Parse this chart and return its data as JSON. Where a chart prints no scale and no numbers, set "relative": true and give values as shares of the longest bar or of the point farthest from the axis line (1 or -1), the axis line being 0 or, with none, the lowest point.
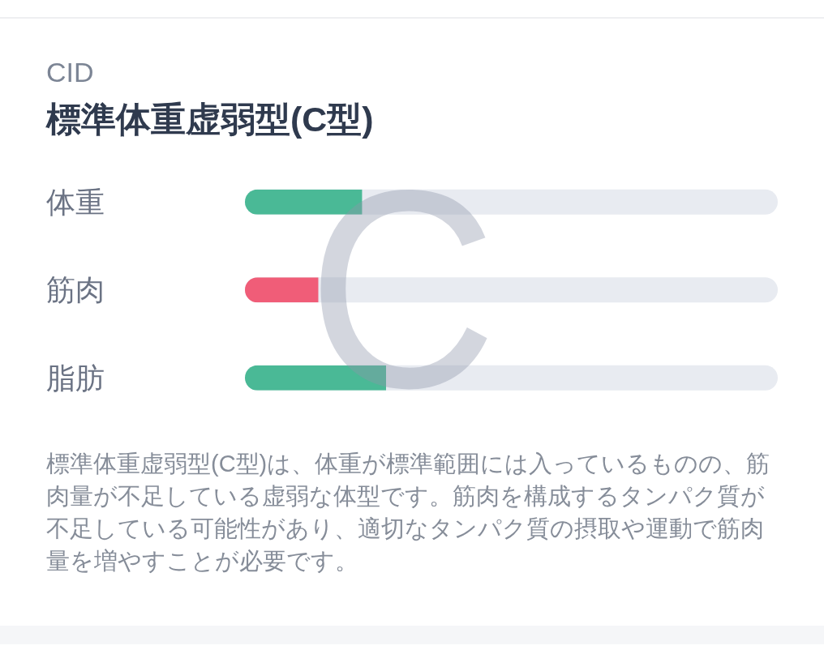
{
  "chart_data": {
    "type": "bar",
    "orientation": "horizontal",
    "relative": true,
    "subtitle": "CID",
    "title": "標準体重虚弱型(C型)",
    "categories": [
      "体重",
      "筋肉",
      "脂肪"
    ],
    "series": [
      {
        "colors": [
          "#4ab996",
          "#f05d78",
          "#4ab996"
        ],
        "values": [
          0.83,
          0.52,
          1
        ]
      }
    ],
    "annotations": [
      "C",
      "標準体重虚弱型(C型)は、体重が標準範囲には入っているものの、筋肉量が不足している虚弱な体型です。筋肉を構成するタンパク質が不足している可能性があり、適切なタンパク質の摂取や運動で筋肉量を増やすことが必要です。"
    ]
  }
}
